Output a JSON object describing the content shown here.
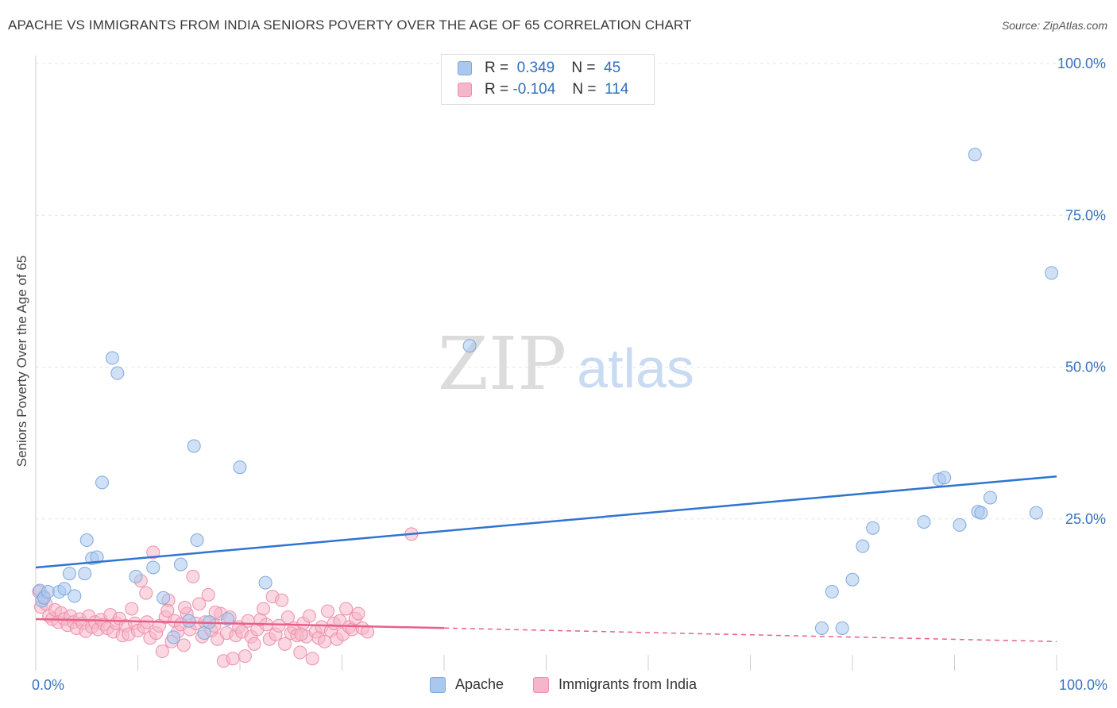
{
  "header": {
    "title": "APACHE VS IMMIGRANTS FROM INDIA SENIORS POVERTY OVER THE AGE OF 65 CORRELATION CHART",
    "source": "Source: ZipAtlas.com"
  },
  "watermark": {
    "zip": "ZIP",
    "atlas": "atlas"
  },
  "legend": {
    "rows": [
      {
        "r_label": "R =",
        "r_value": "0.349",
        "n_label": "N =",
        "n_value": "45",
        "color": "#aac8ee"
      },
      {
        "r_label": "R =",
        "r_value": "-0.104",
        "n_label": "N =",
        "n_value": "114",
        "color": "#f6b6c9"
      }
    ]
  },
  "bottom_legend": [
    {
      "label": "Apache",
      "color": "#aac8ee"
    },
    {
      "label": "Immigrants from India",
      "color": "#f6b6c9"
    }
  ],
  "colors": {
    "apache_fill": "#aac8ee",
    "apache_stroke": "#7ea9de",
    "apache_line": "#2f74d0",
    "india_fill": "#f6b6c9",
    "india_stroke": "#ee8fab",
    "india_line": "#e8608a",
    "grid": "#e6e6e6",
    "axis_text": "#3a72c2"
  },
  "chart_data": {
    "type": "scatter",
    "title": "APACHE VS IMMIGRANTS FROM INDIA SENIORS POVERTY OVER THE AGE OF 65 CORRELATION CHART",
    "xlabel": "",
    "ylabel": "Seniors Poverty Over the Age of 65",
    "xlim": [
      0,
      100
    ],
    "ylim": [
      0,
      104
    ],
    "x_tick_labels": [
      "0.0%",
      "100.0%"
    ],
    "y_ticks": [
      25,
      50,
      75,
      100
    ],
    "y_tick_labels": [
      "25.0%",
      "50.0%",
      "75.0%",
      "100.0%"
    ],
    "grid": true,
    "series": [
      {
        "name": "Apache",
        "trend": {
          "x": [
            0,
            100
          ],
          "y": [
            17.0,
            32.0
          ],
          "solid_until": 100
        },
        "points": [
          [
            0.4,
            13.2
          ],
          [
            0.6,
            11.5
          ],
          [
            0.8,
            12.0
          ],
          [
            1.2,
            13.0
          ],
          [
            2.3,
            13.0
          ],
          [
            2.8,
            13.5
          ],
          [
            3.3,
            16.0
          ],
          [
            3.8,
            12.3
          ],
          [
            4.8,
            16.0
          ],
          [
            5.0,
            21.5
          ],
          [
            5.5,
            18.5
          ],
          [
            6.0,
            18.7
          ],
          [
            6.5,
            31.0
          ],
          [
            7.5,
            51.5
          ],
          [
            8.0,
            49.0
          ],
          [
            9.8,
            15.5
          ],
          [
            11.5,
            17.0
          ],
          [
            12.5,
            12.0
          ],
          [
            13.5,
            5.5
          ],
          [
            14.2,
            17.5
          ],
          [
            15.0,
            8.2
          ],
          [
            15.5,
            37.0
          ],
          [
            15.8,
            21.5
          ],
          [
            16.5,
            6.2
          ],
          [
            17.0,
            8.0
          ],
          [
            18.8,
            8.5
          ],
          [
            20.0,
            33.5
          ],
          [
            22.5,
            14.5
          ],
          [
            42.5,
            53.5
          ],
          [
            77.0,
            7.0
          ],
          [
            78.0,
            13.0
          ],
          [
            79.0,
            7.0
          ],
          [
            80.0,
            15.0
          ],
          [
            81.0,
            20.5
          ],
          [
            82.0,
            23.5
          ],
          [
            87.0,
            24.5
          ],
          [
            88.5,
            31.5
          ],
          [
            89.0,
            31.8
          ],
          [
            90.5,
            24.0
          ],
          [
            92.3,
            26.2
          ],
          [
            92.6,
            26.0
          ],
          [
            93.5,
            28.5
          ],
          [
            92.0,
            85.0
          ],
          [
            98.0,
            26.0
          ],
          [
            99.5,
            65.5
          ]
        ]
      },
      {
        "name": "Immigrants from India",
        "trend": {
          "x": [
            0,
            100
          ],
          "y": [
            8.5,
            4.8
          ],
          "solid_until": 40
        },
        "points": [
          [
            0.3,
            13.0
          ],
          [
            0.5,
            10.5
          ],
          [
            0.8,
            12.2
          ],
          [
            1.0,
            11.0
          ],
          [
            1.3,
            9.0
          ],
          [
            1.6,
            8.5
          ],
          [
            1.9,
            10.0
          ],
          [
            2.2,
            8.0
          ],
          [
            2.5,
            9.5
          ],
          [
            2.8,
            8.5
          ],
          [
            3.1,
            7.5
          ],
          [
            3.4,
            9.0
          ],
          [
            3.7,
            8.0
          ],
          [
            4.0,
            7.0
          ],
          [
            4.3,
            8.5
          ],
          [
            4.6,
            7.8
          ],
          [
            4.9,
            6.5
          ],
          [
            5.2,
            9.0
          ],
          [
            5.5,
            7.2
          ],
          [
            5.8,
            8.0
          ],
          [
            6.1,
            6.8
          ],
          [
            6.4,
            8.4
          ],
          [
            6.7,
            7.6
          ],
          [
            7.0,
            7.0
          ],
          [
            7.3,
            9.2
          ],
          [
            7.6,
            6.4
          ],
          [
            7.9,
            7.8
          ],
          [
            8.2,
            8.6
          ],
          [
            8.5,
            5.8
          ],
          [
            8.8,
            7.4
          ],
          [
            9.1,
            6.0
          ],
          [
            9.4,
            10.2
          ],
          [
            9.7,
            7.8
          ],
          [
            10.0,
            6.6
          ],
          [
            10.3,
            14.8
          ],
          [
            10.6,
            7.2
          ],
          [
            10.9,
            8.0
          ],
          [
            11.2,
            5.4
          ],
          [
            11.5,
            19.5
          ],
          [
            11.8,
            6.2
          ],
          [
            12.1,
            7.4
          ],
          [
            12.4,
            3.2
          ],
          [
            12.7,
            8.8
          ],
          [
            13.0,
            11.6
          ],
          [
            13.3,
            4.8
          ],
          [
            13.6,
            8.2
          ],
          [
            13.9,
            6.4
          ],
          [
            14.2,
            7.6
          ],
          [
            14.5,
            4.2
          ],
          [
            14.8,
            9.4
          ],
          [
            15.1,
            6.8
          ],
          [
            15.4,
            15.5
          ],
          [
            15.7,
            7.8
          ],
          [
            16.0,
            11.0
          ],
          [
            16.3,
            5.6
          ],
          [
            16.6,
            8.0
          ],
          [
            16.9,
            12.5
          ],
          [
            17.2,
            6.6
          ],
          [
            17.5,
            7.4
          ],
          [
            17.8,
            5.2
          ],
          [
            18.1,
            9.4
          ],
          [
            18.4,
            1.6
          ],
          [
            18.7,
            6.2
          ],
          [
            19.0,
            8.8
          ],
          [
            19.3,
            2.0
          ],
          [
            19.6,
            5.8
          ],
          [
            19.9,
            7.2
          ],
          [
            20.2,
            6.4
          ],
          [
            20.5,
            2.4
          ],
          [
            20.8,
            8.2
          ],
          [
            21.1,
            5.6
          ],
          [
            21.4,
            4.4
          ],
          [
            21.7,
            6.8
          ],
          [
            22.0,
            8.4
          ],
          [
            22.3,
            10.2
          ],
          [
            22.6,
            7.6
          ],
          [
            22.9,
            5.2
          ],
          [
            23.2,
            12.2
          ],
          [
            23.5,
            6.0
          ],
          [
            23.8,
            7.4
          ],
          [
            24.1,
            11.6
          ],
          [
            24.4,
            4.4
          ],
          [
            24.7,
            8.8
          ],
          [
            25.0,
            6.2
          ],
          [
            25.3,
            7.0
          ],
          [
            25.6,
            5.8
          ],
          [
            25.9,
            3.0
          ],
          [
            26.2,
            7.8
          ],
          [
            26.5,
            5.6
          ],
          [
            26.8,
            9.0
          ],
          [
            27.1,
            2.0
          ],
          [
            27.4,
            6.4
          ],
          [
            27.7,
            5.4
          ],
          [
            28.0,
            7.2
          ],
          [
            28.3,
            4.8
          ],
          [
            28.6,
            9.8
          ],
          [
            28.9,
            6.6
          ],
          [
            29.2,
            7.8
          ],
          [
            29.5,
            5.2
          ],
          [
            29.8,
            8.2
          ],
          [
            30.1,
            6.0
          ],
          [
            30.4,
            10.2
          ],
          [
            30.7,
            7.2
          ],
          [
            31.0,
            6.8
          ],
          [
            31.3,
            8.6
          ],
          [
            31.6,
            9.4
          ],
          [
            32.0,
            7.0
          ],
          [
            32.5,
            6.4
          ],
          [
            10.8,
            12.8
          ],
          [
            17.6,
            9.6
          ],
          [
            14.6,
            10.4
          ],
          [
            36.8,
            22.5
          ],
          [
            12.9,
            9.9
          ],
          [
            26.0,
            6.0
          ]
        ]
      }
    ]
  }
}
